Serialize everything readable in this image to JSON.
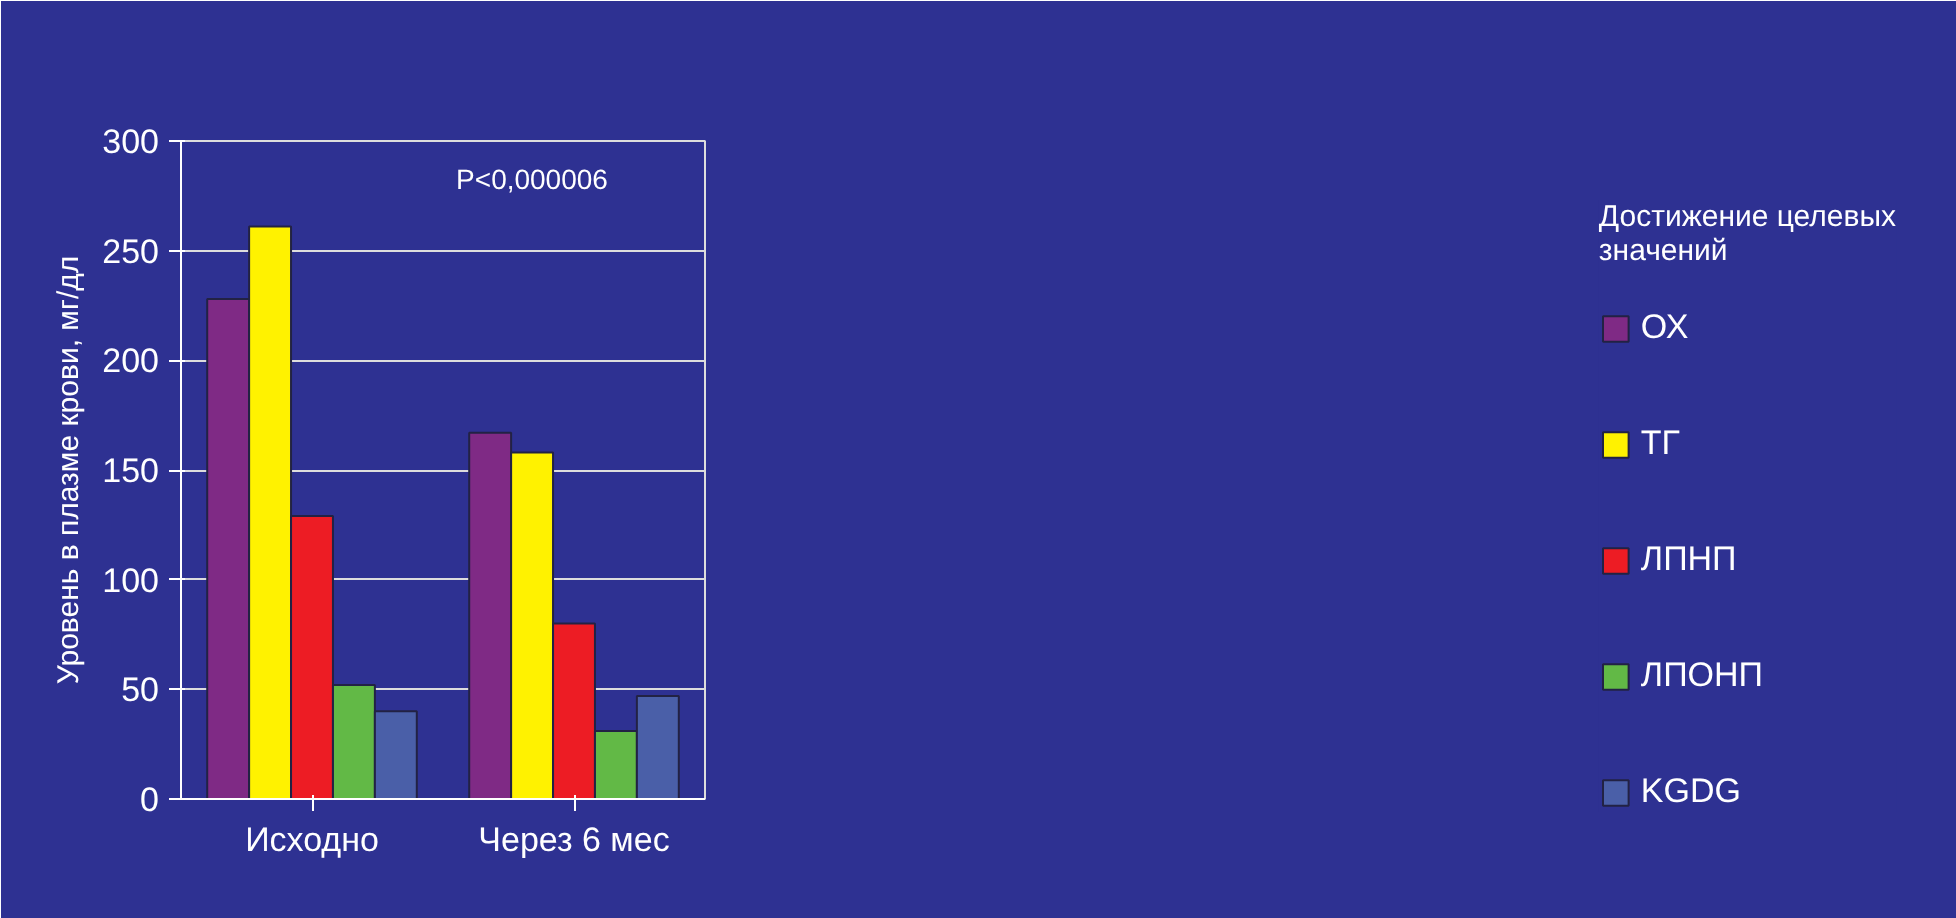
{
  "chart_data": {
    "type": "bar",
    "ylabel": "Уровень в плазме крови, мг/дл",
    "legend_title": "Достижение целевых\nзначений",
    "categories": [
      "Исходно",
      "Через 6 мес"
    ],
    "series": [
      {
        "name": "ОХ",
        "color": "#7f2a85",
        "values": [
          228,
          167
        ]
      },
      {
        "name": "ТГ",
        "color": "#fff200",
        "values": [
          261,
          158
        ]
      },
      {
        "name": "ЛПНП",
        "color": "#ed1c24",
        "values": [
          129,
          80
        ]
      },
      {
        "name": "ЛПОНП",
        "color": "#62b946",
        "values": [
          52,
          31
        ]
      },
      {
        "name": "KGDG",
        "color": "#4a5fa8",
        "values": [
          40,
          47
        ]
      }
    ],
    "ylim": [
      0,
      300
    ],
    "yticks": [
      0,
      50,
      100,
      150,
      200,
      250,
      300
    ],
    "grid": "y",
    "legend": "right",
    "annotations": [
      "P<0,000006"
    ]
  }
}
